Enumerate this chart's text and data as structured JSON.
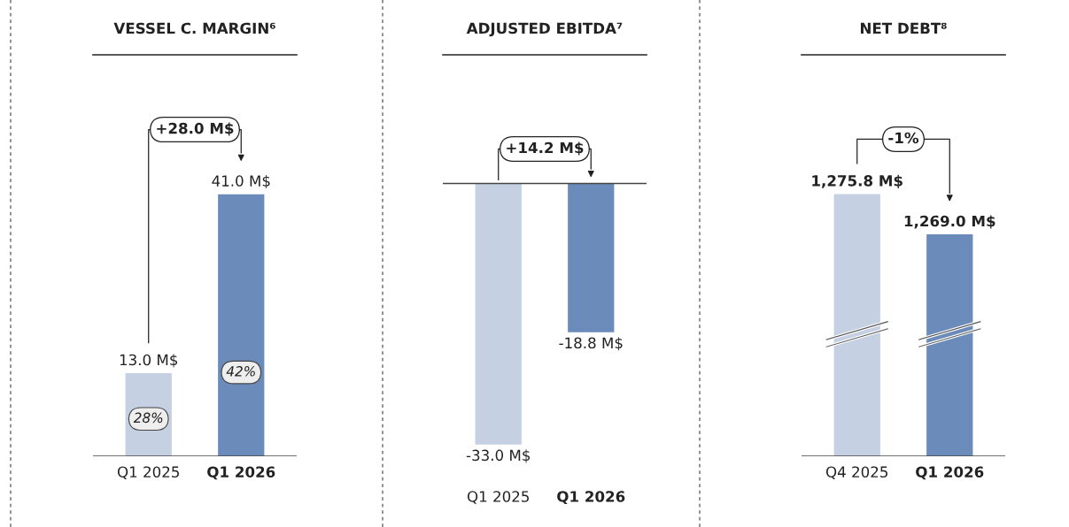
{
  "chart_data": [
    {
      "type": "bar",
      "title": "VESSEL C. MARGIN⁶",
      "categories": [
        "Q1 2025",
        "Q1 2026"
      ],
      "values": [
        13.0,
        41.0
      ],
      "colors": [
        "#c5d0e3",
        "#6b8cba"
      ],
      "value_labels": [
        "13.0 M$",
        "41.0 M$"
      ],
      "tick_labels": "x",
      "grid": false,
      "legend": false,
      "annotations": [
        "+28.0 M$",
        "28%",
        "42%"
      ]
    },
    {
      "type": "bar",
      "title": "ADJUSTED EBITDA⁷",
      "categories": [
        "Q1 2025",
        "Q1 2026"
      ],
      "values": [
        -33.0,
        -18.8
      ],
      "colors": [
        "#c5d0e3",
        "#6b8cba"
      ],
      "value_labels": [
        "-33.0 M$",
        "-18.8 M$"
      ],
      "tick_labels": "x",
      "grid": false,
      "legend": false,
      "annotations": [
        "+14.2 M$"
      ]
    },
    {
      "type": "bar",
      "title": "NET DEBT⁸",
      "categories": [
        "Q4 2025",
        "Q1 2026"
      ],
      "values": [
        1275.8,
        1269.0
      ],
      "colors": [
        "#c5d0e3",
        "#6b8cba"
      ],
      "value_labels": [
        "1,275.8 M$",
        "1,269.0 M$"
      ],
      "tick_labels": "x",
      "grid": false,
      "legend": false,
      "annotations": [
        "-1%"
      ]
    }
  ]
}
